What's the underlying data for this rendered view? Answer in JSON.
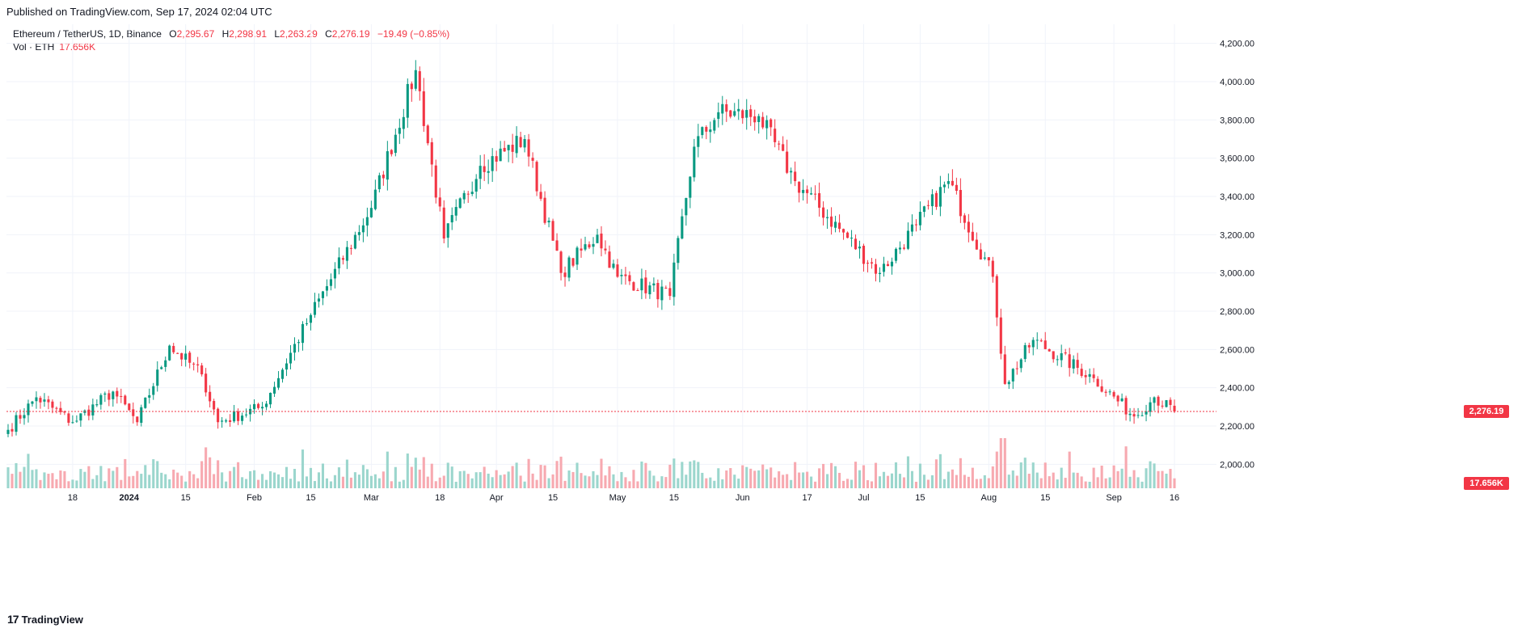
{
  "header": {
    "published": "Published on TradingView.com, Sep 17, 2024 02:04 UTC"
  },
  "legend": {
    "symbol": "Ethereum / TetherUS, 1D, Binance",
    "open_label": "O",
    "open": "2,295.67",
    "high_label": "H",
    "high": "2,298.91",
    "low_label": "L",
    "low": "2,263.29",
    "close_label": "C",
    "close": "2,276.19",
    "change": "−19.49 (−0.85%)",
    "vol_label": "Vol · ETH",
    "vol_value": "17.656K"
  },
  "footer": {
    "brand": "TradingView",
    "logo_mark": "17"
  },
  "colors": {
    "up": "#089981",
    "down": "#f23645",
    "up_vol": "#9bd6cd",
    "down_vol": "#f7a9b0",
    "grid": "#f0f3fa",
    "axis_text": "#131722"
  },
  "chart_data": {
    "type": "candlestick",
    "title": "",
    "ylim": [
      1900,
      4300
    ],
    "y_ticks": [
      "4,200.00",
      "4,000.00",
      "3,800.00",
      "3,600.00",
      "3,400.00",
      "3,200.00",
      "3,000.00",
      "2,800.00",
      "2,600.00",
      "2,400.00",
      "2,200.00",
      "2,000.00"
    ],
    "y_tick_values": [
      4200,
      4000,
      3800,
      3600,
      3400,
      3200,
      3000,
      2800,
      2600,
      2400,
      2200,
      2000
    ],
    "x_ticks": [
      "18",
      "2024",
      "15",
      "Feb",
      "15",
      "Mar",
      "18",
      "Apr",
      "15",
      "May",
      "15",
      "Jun",
      "17",
      "Jul",
      "15",
      "Aug",
      "15",
      "Sep",
      "16"
    ],
    "x_tick_dates": [
      "2023-12-18",
      "2024-01-01",
      "2024-01-15",
      "2024-02-01",
      "2024-02-15",
      "2024-03-01",
      "2024-03-18",
      "2024-04-01",
      "2024-04-15",
      "2024-05-01",
      "2024-05-15",
      "2024-06-01",
      "2024-06-17",
      "2024-07-01",
      "2024-07-15",
      "2024-08-01",
      "2024-08-15",
      "2024-09-01",
      "2024-09-16"
    ],
    "date_range": [
      "2023-12-02",
      "2024-09-16"
    ],
    "last_price": 2276.19,
    "last_price_label": "2,276.19",
    "last_volume_label": "17.656K",
    "close_anchors": [
      {
        "date": "2023-12-02",
        "close": 2180
      },
      {
        "date": "2023-12-09",
        "close": 2350
      },
      {
        "date": "2023-12-18",
        "close": 2220
      },
      {
        "date": "2023-12-28",
        "close": 2380
      },
      {
        "date": "2024-01-03",
        "close": 2220
      },
      {
        "date": "2024-01-11",
        "close": 2620
      },
      {
        "date": "2024-01-19",
        "close": 2470
      },
      {
        "date": "2024-01-23",
        "close": 2220
      },
      {
        "date": "2024-02-03",
        "close": 2300
      },
      {
        "date": "2024-02-15",
        "close": 2780
      },
      {
        "date": "2024-03-01",
        "close": 3340
      },
      {
        "date": "2024-03-12",
        "close": 4060
      },
      {
        "date": "2024-03-19",
        "close": 3180
      },
      {
        "date": "2024-03-28",
        "close": 3560
      },
      {
        "date": "2024-04-08",
        "close": 3700
      },
      {
        "date": "2024-04-17",
        "close": 3000
      },
      {
        "date": "2024-04-26",
        "close": 3200
      },
      {
        "date": "2024-05-01",
        "close": 2980
      },
      {
        "date": "2024-05-14",
        "close": 2880
      },
      {
        "date": "2024-05-20",
        "close": 3660
      },
      {
        "date": "2024-05-26",
        "close": 3840
      },
      {
        "date": "2024-06-05",
        "close": 3820
      },
      {
        "date": "2024-06-14",
        "close": 3480
      },
      {
        "date": "2024-07-05",
        "close": 3000
      },
      {
        "date": "2024-07-14",
        "close": 3250
      },
      {
        "date": "2024-07-22",
        "close": 3480
      },
      {
        "date": "2024-08-02",
        "close": 2980
      },
      {
        "date": "2024-08-05",
        "close": 2420
      },
      {
        "date": "2024-08-12",
        "close": 2650
      },
      {
        "date": "2024-08-27",
        "close": 2450
      },
      {
        "date": "2024-09-06",
        "close": 2250
      },
      {
        "date": "2024-09-11",
        "close": 2350
      },
      {
        "date": "2024-09-16",
        "close": 2276.19
      }
    ]
  }
}
